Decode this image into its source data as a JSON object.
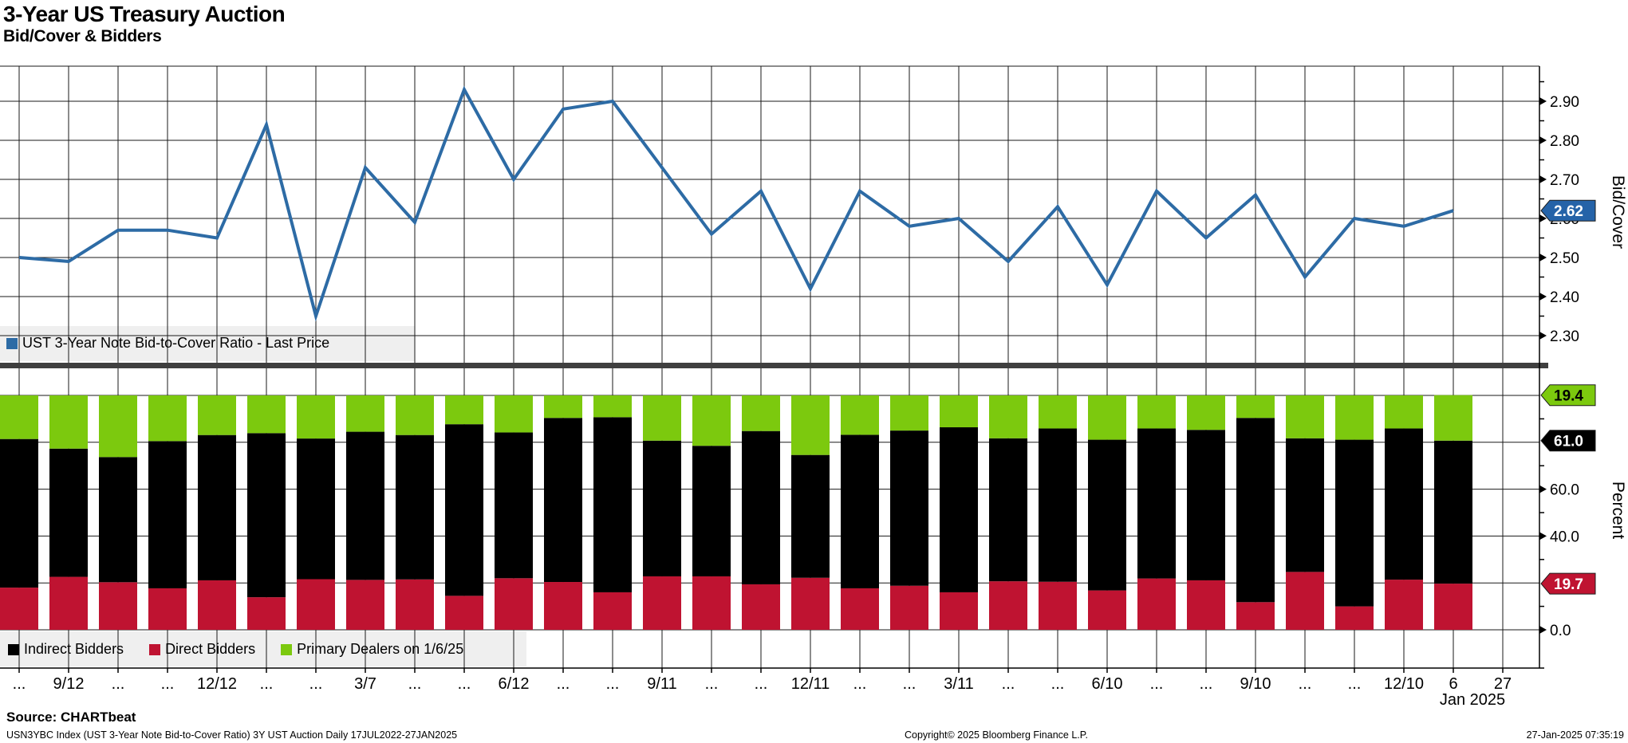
{
  "header": {
    "title": "3-Year US Treasury Auction",
    "subtitle": "Bid/Cover & Bidders"
  },
  "colors": {
    "line_blue": "#2d6ba5",
    "tag_blue": "#2563a8",
    "bar_black": "#000000",
    "bar_red": "#bf1331",
    "bar_green": "#7cc90e",
    "separator": "#3f3f3f",
    "legend_bg": "#efefef",
    "grid": "#1a1a1a"
  },
  "top_legend": {
    "label": "UST 3-Year Note Bid-to-Cover Ratio - Last Price"
  },
  "bottom_legend": {
    "items": [
      {
        "label": "Indirect Bidders",
        "color_key": "bar_black"
      },
      {
        "label": "Direct Bidders",
        "color_key": "bar_red"
      },
      {
        "label": "Primary Dealers on 1/6/25",
        "color_key": "bar_green"
      }
    ]
  },
  "xaxis": {
    "labels": [
      "...",
      "9/12",
      "...",
      "...",
      "12/12",
      "...",
      "...",
      "3/7",
      "...",
      "...",
      "6/12",
      "...",
      "...",
      "9/11",
      "...",
      "...",
      "12/11",
      "...",
      "...",
      "3/11",
      "...",
      "...",
      "6/10",
      "...",
      "...",
      "9/10",
      "...",
      "...",
      "12/10",
      "6",
      "27"
    ],
    "period_label": "Jan 2025"
  },
  "chart_data": [
    {
      "type": "line",
      "title": "UST 3-Year Note Bid-to-Cover Ratio - Last Price",
      "ylabel": "Bid/Cover",
      "yticks": [
        "2.30",
        "2.40",
        "2.50",
        "2.60",
        "2.70",
        "2.80",
        "2.90"
      ],
      "ylim": [
        2.216,
        2.99
      ],
      "grid": true,
      "legend_position": "bottom-left",
      "last_value_tag": "2.62",
      "x_labels": [
        "...",
        "9/12",
        "...",
        "...",
        "12/12",
        "...",
        "...",
        "3/7",
        "...",
        "...",
        "6/12",
        "...",
        "...",
        "9/11",
        "...",
        "...",
        "12/11",
        "...",
        "...",
        "3/11",
        "...",
        "...",
        "6/10",
        "...",
        "...",
        "9/10",
        "...",
        "...",
        "12/10",
        "6",
        "27"
      ],
      "values": [
        2.5,
        2.49,
        2.57,
        2.57,
        2.55,
        2.84,
        2.35,
        2.73,
        2.59,
        2.93,
        2.7,
        2.88,
        2.9,
        2.73,
        2.56,
        2.67,
        2.42,
        2.67,
        2.58,
        2.6,
        2.49,
        2.63,
        2.43,
        2.67,
        2.55,
        2.66,
        2.45,
        2.6,
        2.58,
        2.62
      ]
    },
    {
      "type": "bar",
      "stacked": true,
      "stack_order": "bottom-to-top",
      "ylabel": "Percent",
      "yticks_labeled": [
        "0.0",
        "40.0",
        "60.0"
      ],
      "gridlines": [
        0,
        20,
        40,
        60,
        80,
        100
      ],
      "ylim": [
        0,
        116
      ],
      "series": [
        {
          "name": "Direct Bidders",
          "color": "#bf1331",
          "values": [
            18.0,
            22.6,
            20.3,
            17.7,
            21.1,
            13.9,
            21.6,
            21.3,
            21.5,
            14.5,
            22.0,
            20.4,
            16.0,
            22.8,
            22.8,
            19.4,
            22.2,
            17.7,
            18.8,
            16.0,
            20.7,
            20.5,
            16.8,
            21.9,
            21.1,
            11.8,
            24.7,
            10.0,
            21.4,
            19.7
          ]
        },
        {
          "name": "Indirect Bidders",
          "color": "#000000",
          "values": [
            63.4,
            54.7,
            53.4,
            62.8,
            62.0,
            70.0,
            60.0,
            63.2,
            61.6,
            73.2,
            62.2,
            70.0,
            74.7,
            57.9,
            55.7,
            65.4,
            52.4,
            65.5,
            66.2,
            70.4,
            61.0,
            65.4,
            64.3,
            64.0,
            64.2,
            78.6,
            57.0,
            71.1,
            64.5,
            61.0
          ]
        },
        {
          "name": "Primary Dealers on 1/6/25",
          "color": "#7cc90e",
          "values": [
            18.6,
            22.7,
            26.3,
            19.5,
            16.9,
            16.1,
            18.4,
            15.5,
            16.9,
            12.3,
            15.8,
            9.6,
            9.3,
            19.3,
            21.5,
            15.2,
            25.4,
            16.8,
            15.0,
            13.6,
            18.3,
            14.1,
            18.9,
            14.1,
            14.7,
            9.6,
            18.3,
            18.9,
            14.1,
            19.4
          ]
        }
      ],
      "last_value_tags": [
        {
          "value": "19.4",
          "color": "#7cc90e",
          "text_color": "#000000"
        },
        {
          "value": "61.0",
          "color": "#000000",
          "text_color": "#ffffff"
        },
        {
          "value": "19.7",
          "color": "#bf1331",
          "text_color": "#ffffff"
        }
      ]
    }
  ],
  "footer": {
    "source": "Source: CHARTbeat",
    "description": "USN3YBC Index (UST 3-Year Note Bid-to-Cover Ratio) 3Y UST Auction  Daily 17JUL2022-27JAN2025",
    "copyright": "Copyright© 2025 Bloomberg Finance L.P.",
    "timestamp": "27-Jan-2025 07:35:19"
  }
}
